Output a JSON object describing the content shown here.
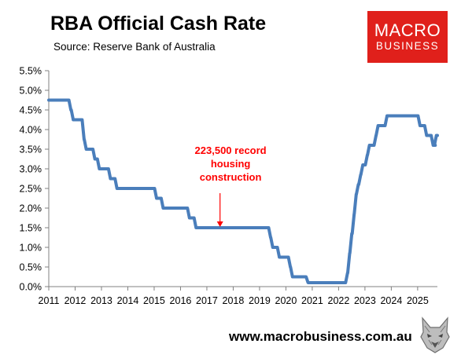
{
  "header": {
    "title": "RBA Official Cash Rate",
    "source": "Source: Reserve Bank of Australia"
  },
  "logo": {
    "line1": "MACRO",
    "line2": "BUSINESS",
    "background": "#e0201b",
    "icon": "wolf-head-icon"
  },
  "footer": {
    "website": "www.macrobusiness.com.au"
  },
  "colors": {
    "line": "#4a7ebb",
    "annotation": "#ff0000",
    "axis": "#808080"
  },
  "chart_data": {
    "type": "line",
    "title": "RBA Official Cash Rate",
    "xlabel": "",
    "ylabel": "",
    "xlim": [
      2011,
      2025.75
    ],
    "ylim": [
      0,
      5.5
    ],
    "y_ticks": [
      "0.0%",
      "0.5%",
      "1.0%",
      "1.5%",
      "2.0%",
      "2.5%",
      "3.0%",
      "3.5%",
      "4.0%",
      "4.5%",
      "5.0%",
      "5.5%"
    ],
    "x_ticks": [
      "2011",
      "2012",
      "2013",
      "2014",
      "2015",
      "2016",
      "2017",
      "2018",
      "2019",
      "2020",
      "2021",
      "2022",
      "2023",
      "2024",
      "2025"
    ],
    "grid": false,
    "legend": "none",
    "series": [
      {
        "points": [
          [
            2011.0,
            4.75
          ],
          [
            2011.84,
            4.5
          ],
          [
            2011.93,
            4.25
          ],
          [
            2012.34,
            3.75
          ],
          [
            2012.42,
            3.5
          ],
          [
            2012.75,
            3.25
          ],
          [
            2012.92,
            3.0
          ],
          [
            2013.34,
            2.75
          ],
          [
            2013.59,
            2.5
          ],
          [
            2015.09,
            2.25
          ],
          [
            2015.34,
            2.0
          ],
          [
            2016.34,
            1.75
          ],
          [
            2016.59,
            1.5
          ],
          [
            2019.42,
            1.25
          ],
          [
            2019.5,
            1.0
          ],
          [
            2019.75,
            0.75
          ],
          [
            2020.17,
            0.5
          ],
          [
            2020.25,
            0.25
          ],
          [
            2020.84,
            0.1
          ],
          [
            2022.34,
            0.35
          ],
          [
            2022.42,
            0.85
          ],
          [
            2022.5,
            1.35
          ],
          [
            2022.59,
            1.85
          ],
          [
            2022.67,
            2.35
          ],
          [
            2022.75,
            2.6
          ],
          [
            2022.84,
            2.85
          ],
          [
            2022.92,
            3.1
          ],
          [
            2023.09,
            3.35
          ],
          [
            2023.17,
            3.6
          ],
          [
            2023.42,
            3.85
          ],
          [
            2023.5,
            4.1
          ],
          [
            2023.84,
            4.35
          ],
          [
            2025.09,
            4.1
          ],
          [
            2025.34,
            3.85
          ],
          [
            2025.59,
            3.6
          ],
          [
            2025.67,
            3.6
          ],
          [
            2025.71,
            3.85
          ]
        ]
      }
    ],
    "annotations": [
      {
        "lines": [
          "223,500 record",
          "housing",
          "construction"
        ],
        "arrow_to": [
          2017.5,
          1.5
        ]
      }
    ]
  }
}
